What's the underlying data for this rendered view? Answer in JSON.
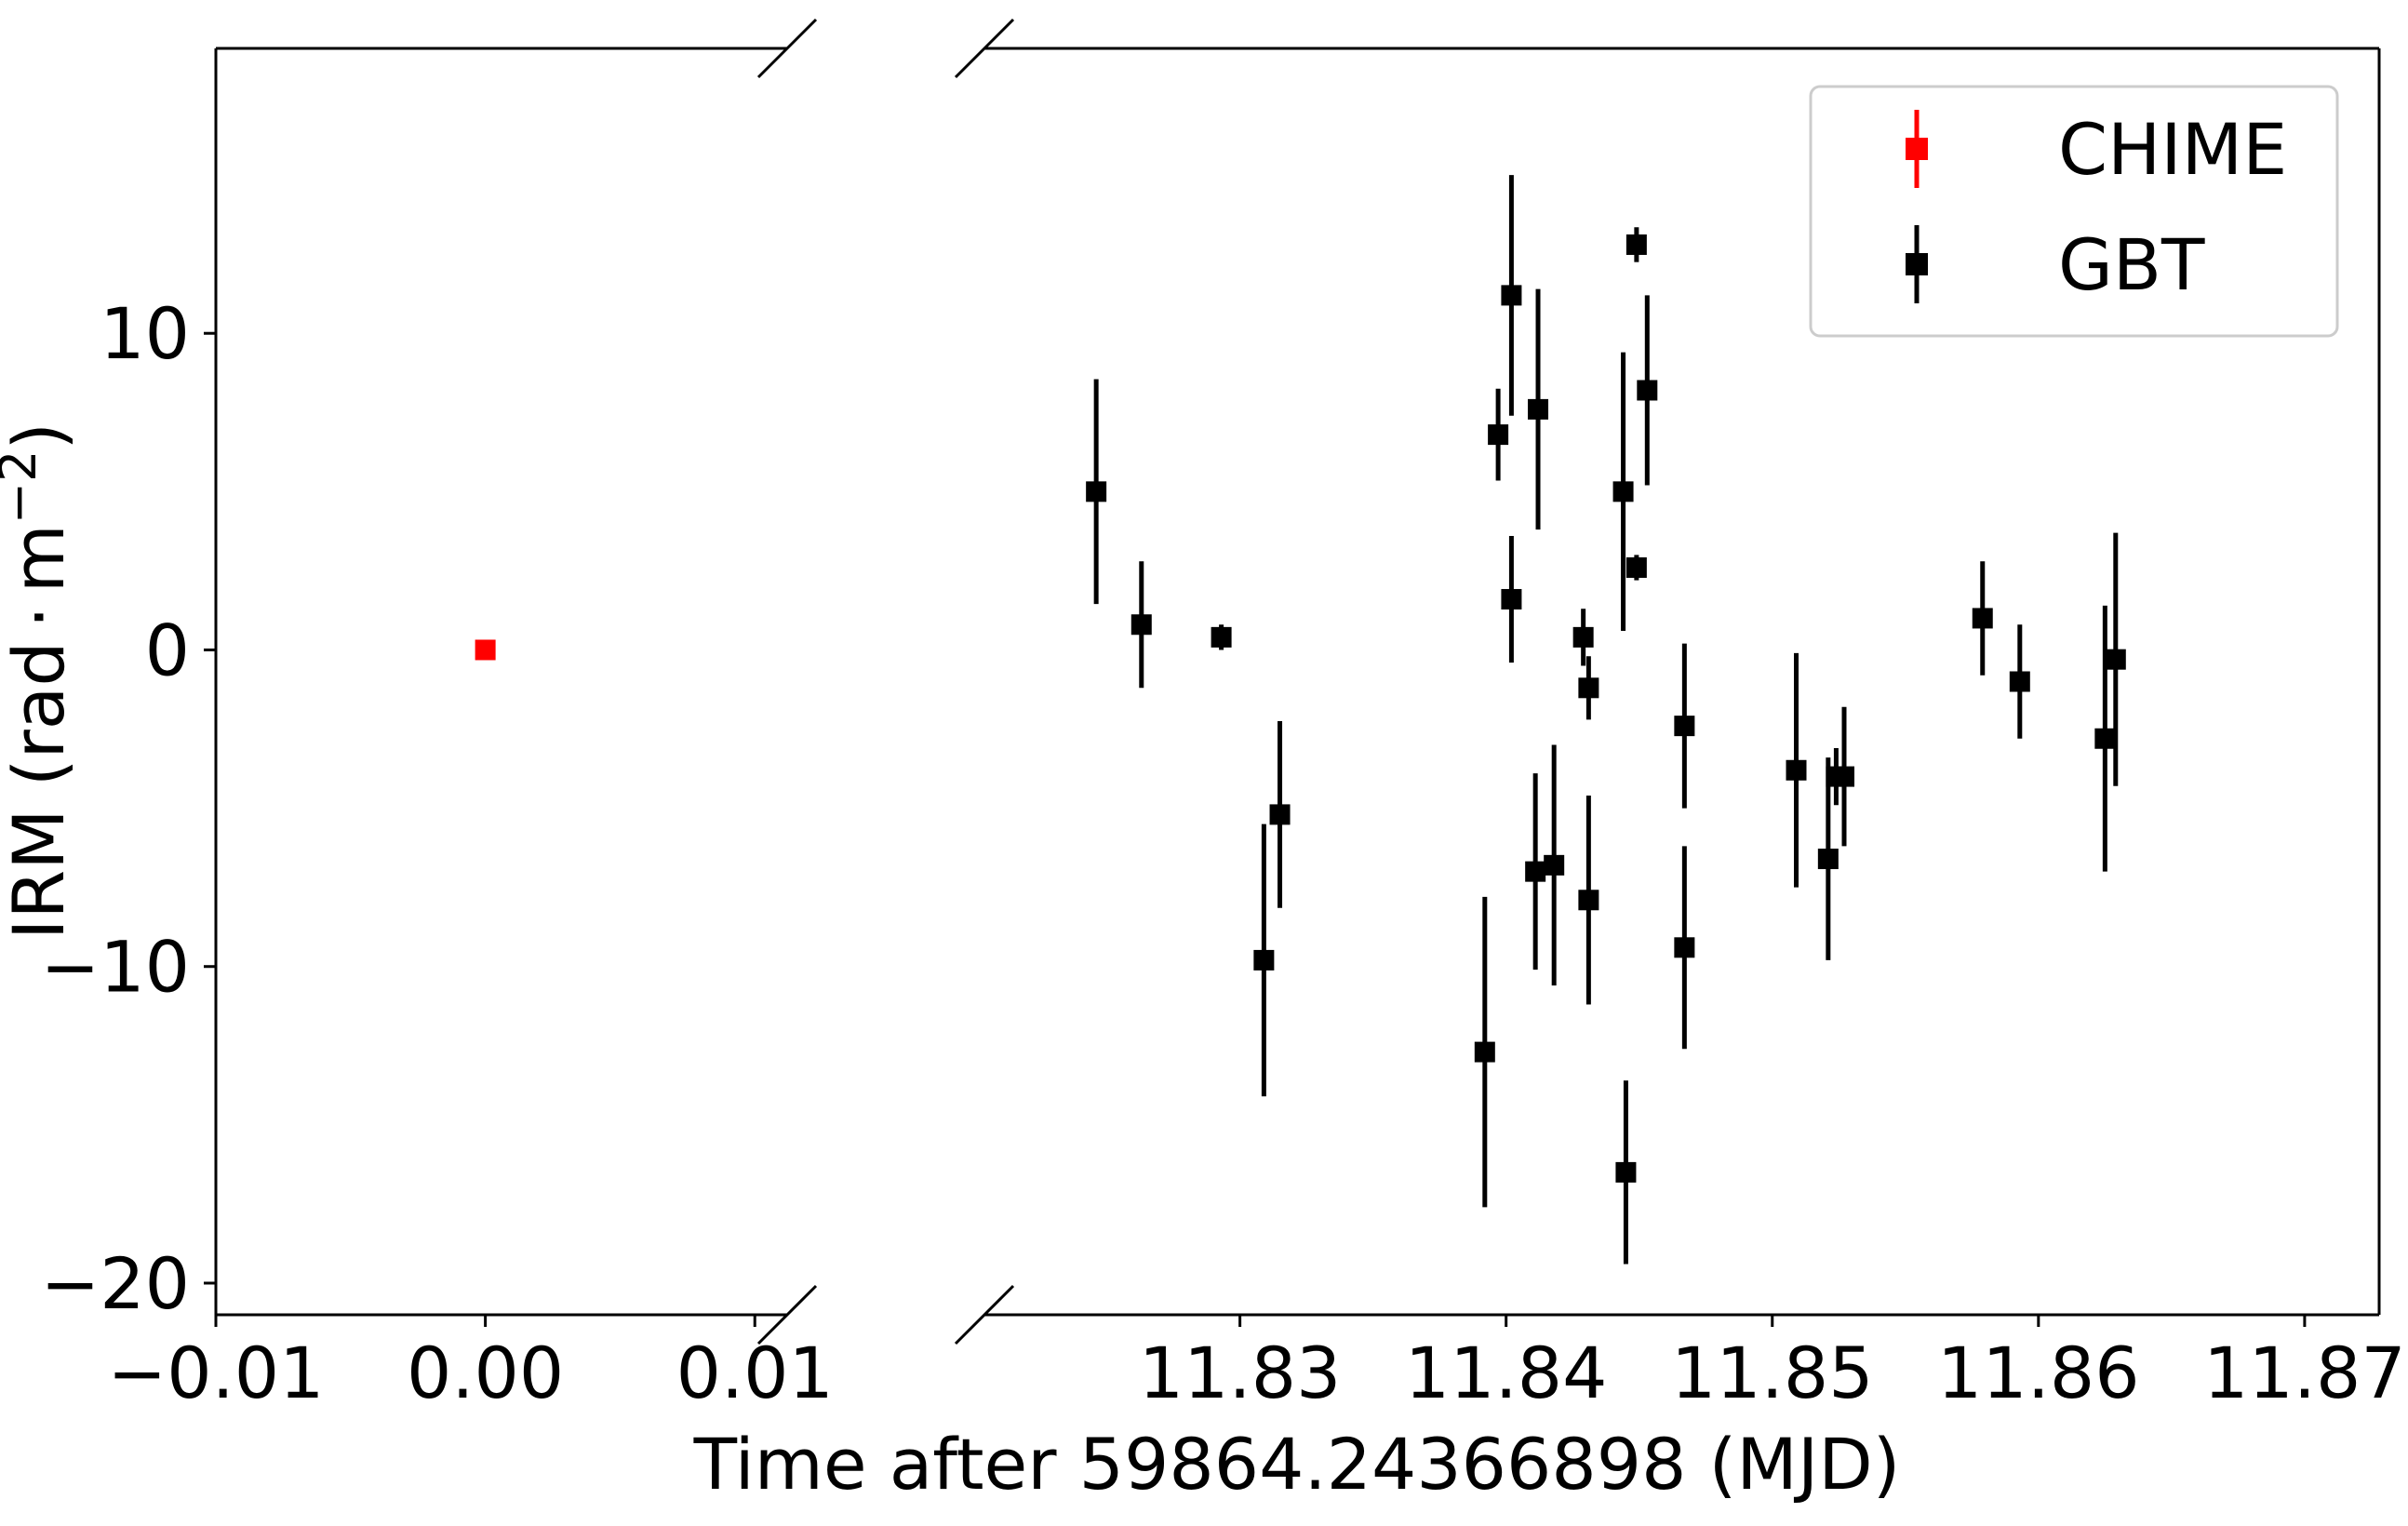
{
  "chart_data": {
    "type": "scatter",
    "xlabel": "Time after 59864.24366898 (MJD)",
    "ylabel_parts": {
      "prefix": "IRM (rad",
      "dot": "·",
      "middle": "m",
      "sup": "−2",
      "suffix": ")"
    },
    "broken_x_axis": true,
    "ylim": [
      -21,
      19
    ],
    "yticks": [
      {
        "value": 10,
        "label": "10"
      },
      {
        "value": 0,
        "label": "0"
      },
      {
        "value": -10,
        "label": "−10"
      },
      {
        "value": -20,
        "label": "−20"
      }
    ],
    "panels": [
      {
        "xlim": [
          -0.01,
          0.0112
        ],
        "xticks": [
          {
            "value": -0.01,
            "label": "−0.01"
          },
          {
            "value": 0.0,
            "label": "0.00"
          },
          {
            "value": 0.01,
            "label": "0.01"
          }
        ]
      },
      {
        "xlim": [
          11.8204,
          11.8728
        ],
        "xticks": [
          {
            "value": 11.83,
            "label": "11.83"
          },
          {
            "value": 11.84,
            "label": "11.84"
          },
          {
            "value": 11.85,
            "label": "11.85"
          },
          {
            "value": 11.86,
            "label": "11.86"
          },
          {
            "value": 11.87,
            "label": "11.87"
          }
        ]
      }
    ],
    "legend_position": "top-right",
    "series": [
      {
        "name": "CHIME",
        "color": "#ff0000",
        "marker": "square",
        "panel": 0,
        "points": [
          {
            "x": 0.0,
            "y": 0.0,
            "yerr": 0.0
          }
        ]
      },
      {
        "name": "GBT",
        "color": "#000000",
        "marker": "square",
        "panel": 1,
        "points": [
          {
            "x": 11.8246,
            "y": 5.0,
            "yerr": 3.55
          },
          {
            "x": 11.8263,
            "y": 0.8,
            "yerr": 2.0
          },
          {
            "x": 11.8293,
            "y": 0.4,
            "yerr": 0.4
          },
          {
            "x": 11.8309,
            "y": -9.8,
            "yerr": 4.3
          },
          {
            "x": 11.8315,
            "y": -5.2,
            "yerr": 2.95
          },
          {
            "x": 11.8392,
            "y": -12.7,
            "yerr": 4.9
          },
          {
            "x": 11.8397,
            "y": 6.8,
            "yerr": 1.45
          },
          {
            "x": 11.8402,
            "y": 11.2,
            "yerr": 3.8
          },
          {
            "x": 11.8402,
            "y": 1.6,
            "yerr": 2.0
          },
          {
            "x": 11.8411,
            "y": -7.0,
            "yerr": 3.1
          },
          {
            "x": 11.8412,
            "y": 7.6,
            "yerr": 3.8
          },
          {
            "x": 11.8418,
            "y": -6.8,
            "yerr": 3.8
          },
          {
            "x": 11.8429,
            "y": 0.4,
            "yerr": 0.9
          },
          {
            "x": 11.8431,
            "y": -1.2,
            "yerr": 1.0
          },
          {
            "x": 11.8431,
            "y": -7.9,
            "yerr": 3.3
          },
          {
            "x": 11.8444,
            "y": 5.0,
            "yerr": 4.4
          },
          {
            "x": 11.8445,
            "y": -16.5,
            "yerr": 2.9
          },
          {
            "x": 11.8449,
            "y": 12.8,
            "yerr": 0.55
          },
          {
            "x": 11.8449,
            "y": 2.6,
            "yerr": 0.4
          },
          {
            "x": 11.8453,
            "y": 8.2,
            "yerr": 3.0
          },
          {
            "x": 11.8467,
            "y": -2.4,
            "yerr": 2.6
          },
          {
            "x": 11.8467,
            "y": -9.4,
            "yerr": 3.2
          },
          {
            "x": 11.8509,
            "y": -3.8,
            "yerr": 3.7
          },
          {
            "x": 11.8521,
            "y": -6.6,
            "yerr": 3.2
          },
          {
            "x": 11.8524,
            "y": -4.0,
            "yerr": 0.9
          },
          {
            "x": 11.8527,
            "y": -4.0,
            "yerr": 2.2
          },
          {
            "x": 11.8579,
            "y": 1.0,
            "yerr": 1.8
          },
          {
            "x": 11.8593,
            "y": -1.0,
            "yerr": 1.8
          },
          {
            "x": 11.8625,
            "y": -2.8,
            "yerr": 4.2
          },
          {
            "x": 11.8629,
            "y": -0.3,
            "yerr": 4.0
          }
        ]
      }
    ]
  }
}
